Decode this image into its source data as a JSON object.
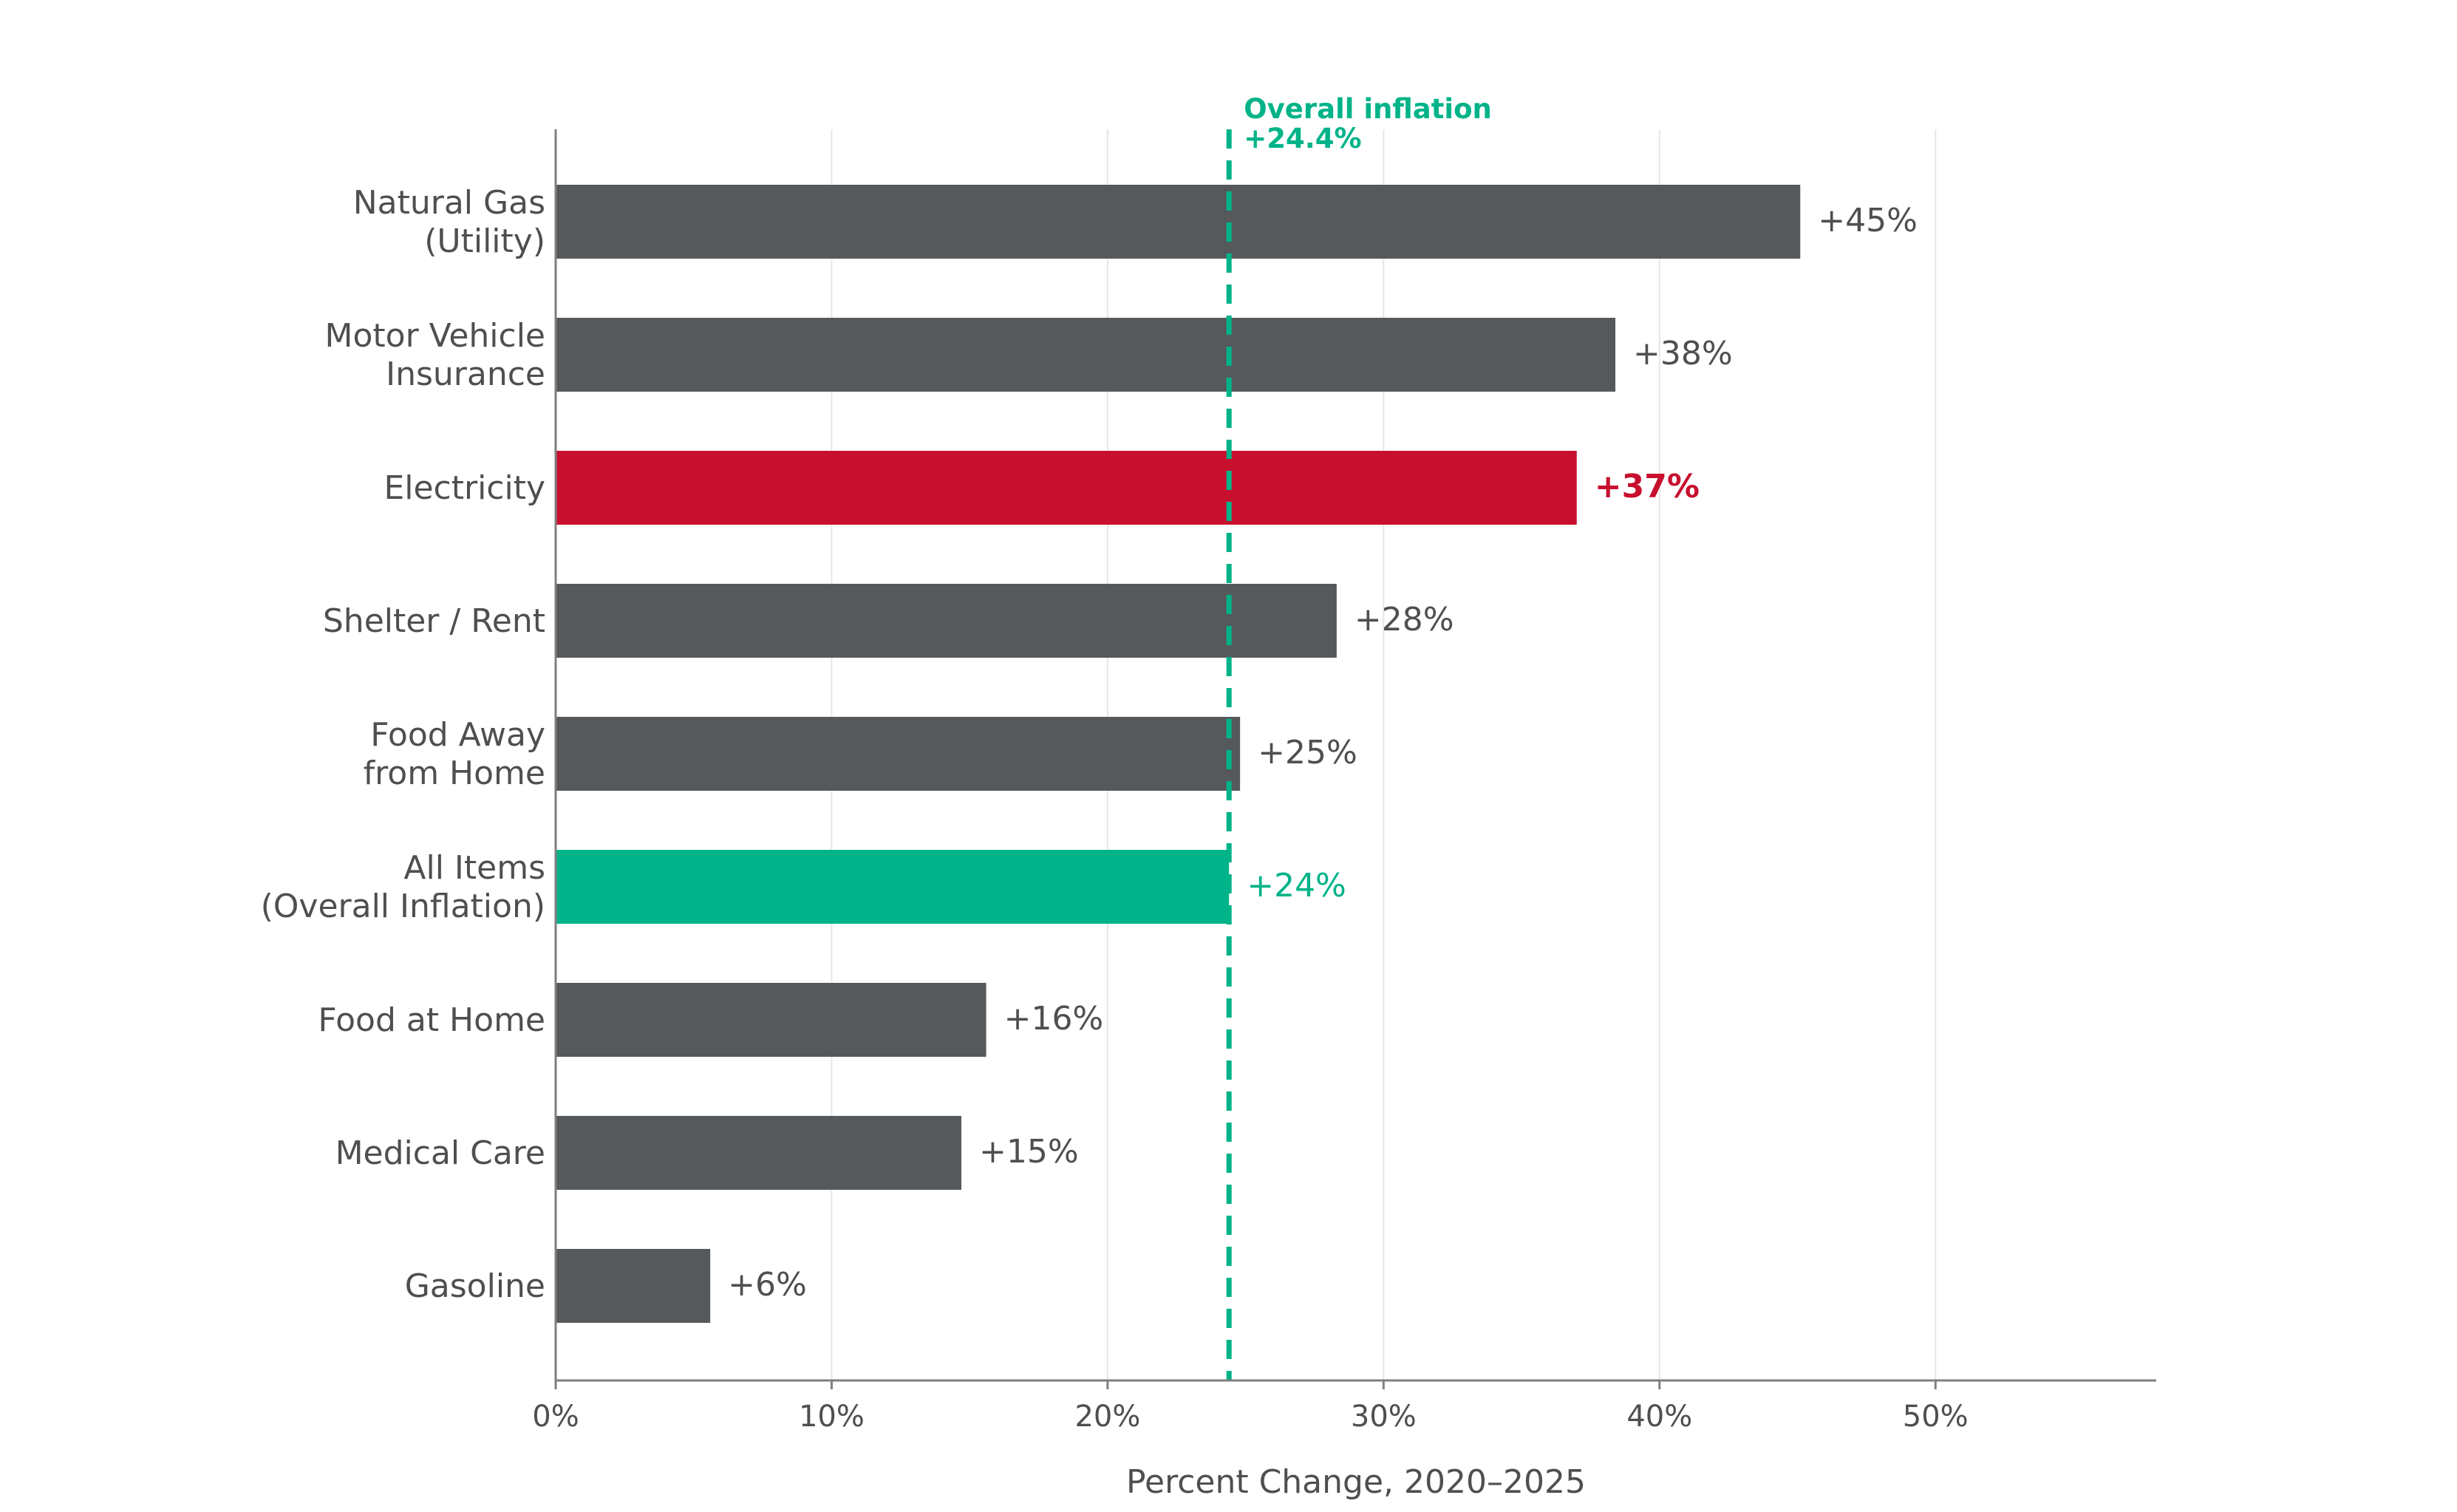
{
  "chart_data": {
    "type": "bar",
    "orientation": "horizontal",
    "categories": [
      "Natural Gas\n(Utility)",
      "Motor Vehicle\nInsurance",
      "Electricity",
      "Shelter / Rent",
      "Food Away\nfrom Home",
      "All Items\n(Overall Inflation)",
      "Food at Home",
      "Medical Care",
      "Gasoline"
    ],
    "values": [
      45.1,
      38.4,
      37.0,
      28.3,
      24.8,
      24.4,
      15.6,
      14.7,
      5.6
    ],
    "data_labels": [
      "+45%",
      "+38%",
      "+37%",
      "+28%",
      "+25%",
      "+24%",
      "+16%",
      "+15%",
      "+6%"
    ],
    "bar_colors": [
      "#55595c",
      "#55595c",
      "#c8102e",
      "#55595c",
      "#55595c",
      "#00b388",
      "#55595c",
      "#55595c",
      "#55595c"
    ],
    "label_colors": [
      "#4d4f51",
      "#4d4f51",
      "#c8102e",
      "#4d4f51",
      "#4d4f51",
      "#00b388",
      "#4d4f51",
      "#4d4f51",
      "#4d4f51"
    ],
    "label_bold": [
      false,
      false,
      true,
      false,
      false,
      false,
      false,
      false,
      false
    ],
    "xlabel": "Percent Change, 2020–2025",
    "ylabel": "",
    "xlim": [
      0,
      58
    ],
    "xticks": [
      0,
      10,
      20,
      30,
      40,
      50
    ],
    "xtick_labels": [
      "0%",
      "10%",
      "20%",
      "30%",
      "40%",
      "50%"
    ],
    "grid": "vertical",
    "reference_line": {
      "value": 24.4,
      "label_line1": "Overall inflation",
      "label_line2": "+24.4%",
      "color": "#00b388",
      "style": "dashed"
    }
  }
}
